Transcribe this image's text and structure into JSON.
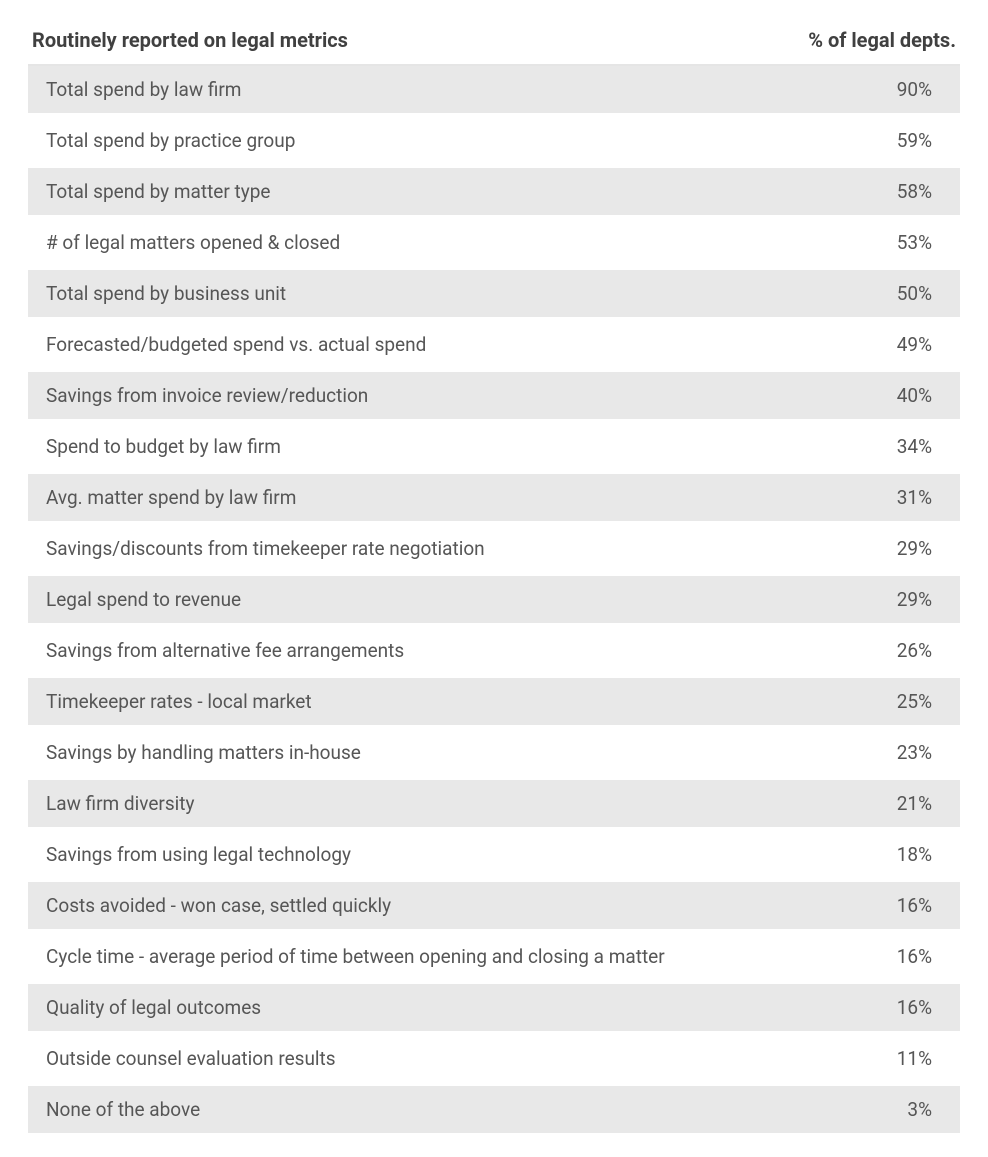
{
  "table": {
    "header": {
      "label": "Routinely reported on legal metrics",
      "value": "% of legal depts."
    },
    "rows": [
      {
        "label": "Total spend by law firm",
        "value": "90%",
        "shaded": true
      },
      {
        "label": "Total spend by practice group",
        "value": "59%",
        "shaded": false
      },
      {
        "label": "Total spend by matter type",
        "value": "58%",
        "shaded": true
      },
      {
        "label": "# of legal matters opened & closed",
        "value": "53%",
        "shaded": false
      },
      {
        "label": "Total spend by business unit",
        "value": "50%",
        "shaded": true
      },
      {
        "label": "Forecasted/budgeted spend vs. actual spend",
        "value": "49%",
        "shaded": false
      },
      {
        "label": "Savings from invoice review/reduction",
        "value": "40%",
        "shaded": true
      },
      {
        "label": "Spend to budget by law firm",
        "value": "34%",
        "shaded": false
      },
      {
        "label": "Avg. matter spend by law firm",
        "value": "31%",
        "shaded": true
      },
      {
        "label": "Savings/discounts from timekeeper rate negotiation",
        "value": "29%",
        "shaded": false
      },
      {
        "label": "Legal spend to revenue",
        "value": "29%",
        "shaded": true
      },
      {
        "label": "Savings from alternative fee arrangements",
        "value": "26%",
        "shaded": false
      },
      {
        "label": "Timekeeper rates - local market",
        "value": "25%",
        "shaded": true
      },
      {
        "label": "Savings by handling matters in-house",
        "value": "23%",
        "shaded": false
      },
      {
        "label": "Law firm diversity",
        "value": "21%",
        "shaded": true
      },
      {
        "label": "Savings from using legal technology",
        "value": "18%",
        "shaded": false
      },
      {
        "label": "Costs avoided - won case, settled quickly",
        "value": "16%",
        "shaded": true
      },
      {
        "label": "Cycle time - average period of time between opening and closing a matter",
        "value": "16%",
        "shaded": false
      },
      {
        "label": "Quality of legal outcomes",
        "value": "16%",
        "shaded": true
      },
      {
        "label": "Outside counsel evaluation results",
        "value": "11%",
        "shaded": false
      },
      {
        "label": "None of the above",
        "value": "3%",
        "shaded": true
      }
    ],
    "styling": {
      "background_color": "#ffffff",
      "shaded_row_color": "#e8e8e8",
      "unshaded_row_color": "#ffffff",
      "header_text_color": "#404040",
      "row_text_color": "#565656",
      "header_fontsize": 20,
      "row_fontsize": 19,
      "header_fontweight": 700,
      "row_fontweight": 400,
      "row_separator_color": "#ffffff",
      "row_separator_width": 4,
      "header_border_color": "#e5e5e5"
    }
  }
}
